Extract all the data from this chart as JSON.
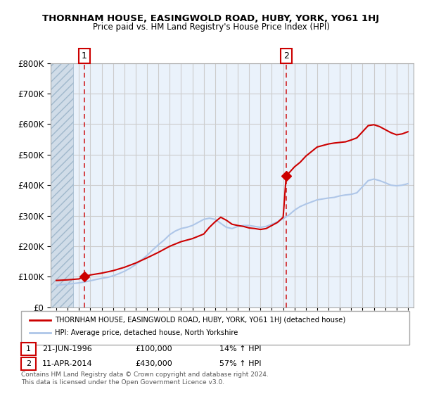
{
  "title": "THORNHAM HOUSE, EASINGWOLD ROAD, HUBY, YORK, YO61 1HJ",
  "subtitle": "Price paid vs. HM Land Registry's House Price Index (HPI)",
  "legend_line1": "THORNHAM HOUSE, EASINGWOLD ROAD, HUBY, YORK, YO61 1HJ (detached house)",
  "legend_line2": "HPI: Average price, detached house, North Yorkshire",
  "annotation1_num": "1",
  "annotation1_date": "21-JUN-1996",
  "annotation1_price": "£100,000",
  "annotation1_hpi": "14% ↑ HPI",
  "annotation2_num": "2",
  "annotation2_date": "11-APR-2014",
  "annotation2_price": "£430,000",
  "annotation2_hpi": "57% ↑ HPI",
  "copyright": "Contains HM Land Registry data © Crown copyright and database right 2024.\nThis data is licensed under the Open Government Licence v3.0.",
  "hpi_color": "#aec6e8",
  "property_color": "#cc0000",
  "marker_color": "#cc0000",
  "dashed_line_color": "#cc0000",
  "hatch_color": "#c8d8e8",
  "grid_color": "#cccccc",
  "background_color": "#ffffff",
  "plot_bg_color": "#eaf2fb",
  "hatch_bg_color": "#d0dce8",
  "ylim": [
    0,
    800000
  ],
  "yticks": [
    0,
    100000,
    200000,
    300000,
    400000,
    500000,
    600000,
    700000,
    800000
  ],
  "xlim_start": 1993.5,
  "xlim_end": 2025.5,
  "hatch_end_year": 1995.5,
  "sale1_year": 1996.47,
  "sale1_price": 100000,
  "sale2_year": 2014.27,
  "sale2_price": 430000,
  "vline1_year": 1996.47,
  "vline2_year": 2014.27,
  "hpi_years": [
    1994,
    1994.5,
    1995,
    1995.5,
    1996,
    1996.5,
    1997,
    1997.5,
    1998,
    1998.5,
    1999,
    1999.5,
    2000,
    2000.5,
    2001,
    2001.5,
    2002,
    2002.5,
    2003,
    2003.5,
    2004,
    2004.5,
    2005,
    2005.5,
    2006,
    2006.5,
    2007,
    2007.5,
    2008,
    2008.5,
    2009,
    2009.5,
    2010,
    2010.5,
    2011,
    2011.5,
    2012,
    2012.5,
    2013,
    2013.5,
    2014,
    2014.5,
    2015,
    2015.5,
    2016,
    2016.5,
    2017,
    2017.5,
    2018,
    2018.5,
    2019,
    2019.5,
    2020,
    2020.5,
    2021,
    2021.5,
    2022,
    2022.5,
    2023,
    2023.5,
    2024,
    2024.5,
    2025
  ],
  "hpi_values": [
    72000,
    74000,
    76000,
    78000,
    80000,
    83000,
    87000,
    91000,
    95000,
    98000,
    103000,
    110000,
    118000,
    128000,
    140000,
    155000,
    170000,
    188000,
    205000,
    220000,
    238000,
    250000,
    258000,
    262000,
    268000,
    278000,
    288000,
    292000,
    288000,
    275000,
    262000,
    258000,
    265000,
    268000,
    268000,
    265000,
    262000,
    265000,
    272000,
    280000,
    290000,
    302000,
    318000,
    330000,
    338000,
    345000,
    352000,
    355000,
    358000,
    360000,
    365000,
    368000,
    370000,
    375000,
    395000,
    415000,
    420000,
    415000,
    408000,
    400000,
    398000,
    400000,
    405000
  ],
  "prop_years": [
    1994,
    1995,
    1996,
    1996.47,
    1997,
    1998,
    1999,
    2000,
    2001,
    2002,
    2003,
    2004,
    2005,
    2006,
    2007,
    2007.5,
    2008,
    2008.5,
    2009,
    2009.5,
    2010,
    2010.5,
    2011,
    2011.5,
    2012,
    2012.5,
    2013,
    2013.5,
    2014,
    2014.27,
    2015,
    2015.5,
    2016,
    2016.5,
    2017,
    2017.5,
    2018,
    2018.5,
    2019,
    2019.5,
    2020,
    2020.5,
    2021,
    2021.5,
    2022,
    2022.5,
    2023,
    2023.5,
    2024,
    2024.5,
    2025
  ],
  "prop_values": [
    88000,
    90000,
    93000,
    100000,
    106000,
    112000,
    120000,
    131000,
    145000,
    162000,
    180000,
    200000,
    215000,
    225000,
    240000,
    262000,
    280000,
    295000,
    285000,
    272000,
    268000,
    265000,
    260000,
    258000,
    255000,
    258000,
    268000,
    278000,
    295000,
    430000,
    460000,
    475000,
    495000,
    510000,
    525000,
    530000,
    535000,
    538000,
    540000,
    542000,
    548000,
    555000,
    575000,
    595000,
    598000,
    592000,
    582000,
    572000,
    565000,
    568000,
    575000
  ]
}
